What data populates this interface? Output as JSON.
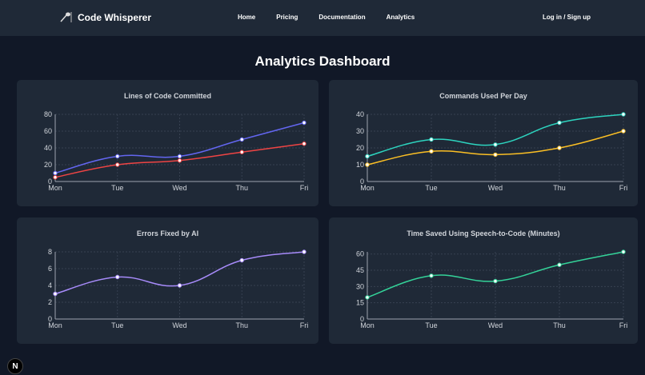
{
  "nav": {
    "brand": "Code Whisperer",
    "links": [
      "Home",
      "Pricing",
      "Documentation",
      "Analytics"
    ],
    "login": "Log in / Sign up",
    "badge": "N"
  },
  "page_title": "Analytics Dashboard",
  "chart_data": [
    {
      "type": "line",
      "title": "Lines of Code Committed",
      "categories": [
        "Mon",
        "Tue",
        "Wed",
        "Thu",
        "Fri"
      ],
      "ylim": [
        0,
        80
      ],
      "yticks": [
        0,
        20,
        40,
        60,
        80
      ],
      "grid": true,
      "series": [
        {
          "values": [
            10,
            30,
            30,
            50,
            70
          ],
          "color": "#6366f1"
        },
        {
          "values": [
            5,
            20,
            25,
            35,
            45
          ],
          "color": "#ef4444"
        }
      ]
    },
    {
      "type": "line",
      "title": "Commands Used Per Day",
      "categories": [
        "Mon",
        "Tue",
        "Wed",
        "Thu",
        "Fri"
      ],
      "ylim": [
        0,
        40
      ],
      "yticks": [
        0,
        10,
        20,
        30,
        40
      ],
      "grid": true,
      "series": [
        {
          "values": [
            15,
            25,
            22,
            35,
            40
          ],
          "color": "#2dd4bf"
        },
        {
          "values": [
            10,
            18,
            16,
            20,
            30
          ],
          "color": "#fbbf24"
        }
      ]
    },
    {
      "type": "line",
      "title": "Errors Fixed by AI",
      "categories": [
        "Mon",
        "Tue",
        "Wed",
        "Thu",
        "Fri"
      ],
      "ylim": [
        0,
        8
      ],
      "yticks": [
        0,
        2,
        4,
        6,
        8
      ],
      "grid": true,
      "series": [
        {
          "values": [
            3,
            5,
            4,
            7,
            8
          ],
          "color": "#a78bfa"
        }
      ]
    },
    {
      "type": "line",
      "title": "Time Saved Using Speech-to-Code (Minutes)",
      "categories": [
        "Mon",
        "Tue",
        "Wed",
        "Thu",
        "Fri"
      ],
      "ylim": [
        0,
        62
      ],
      "yticks": [
        0,
        15,
        30,
        45,
        60
      ],
      "grid": true,
      "series": [
        {
          "values": [
            20,
            40,
            35,
            50,
            62
          ],
          "color": "#34d399"
        }
      ]
    }
  ]
}
